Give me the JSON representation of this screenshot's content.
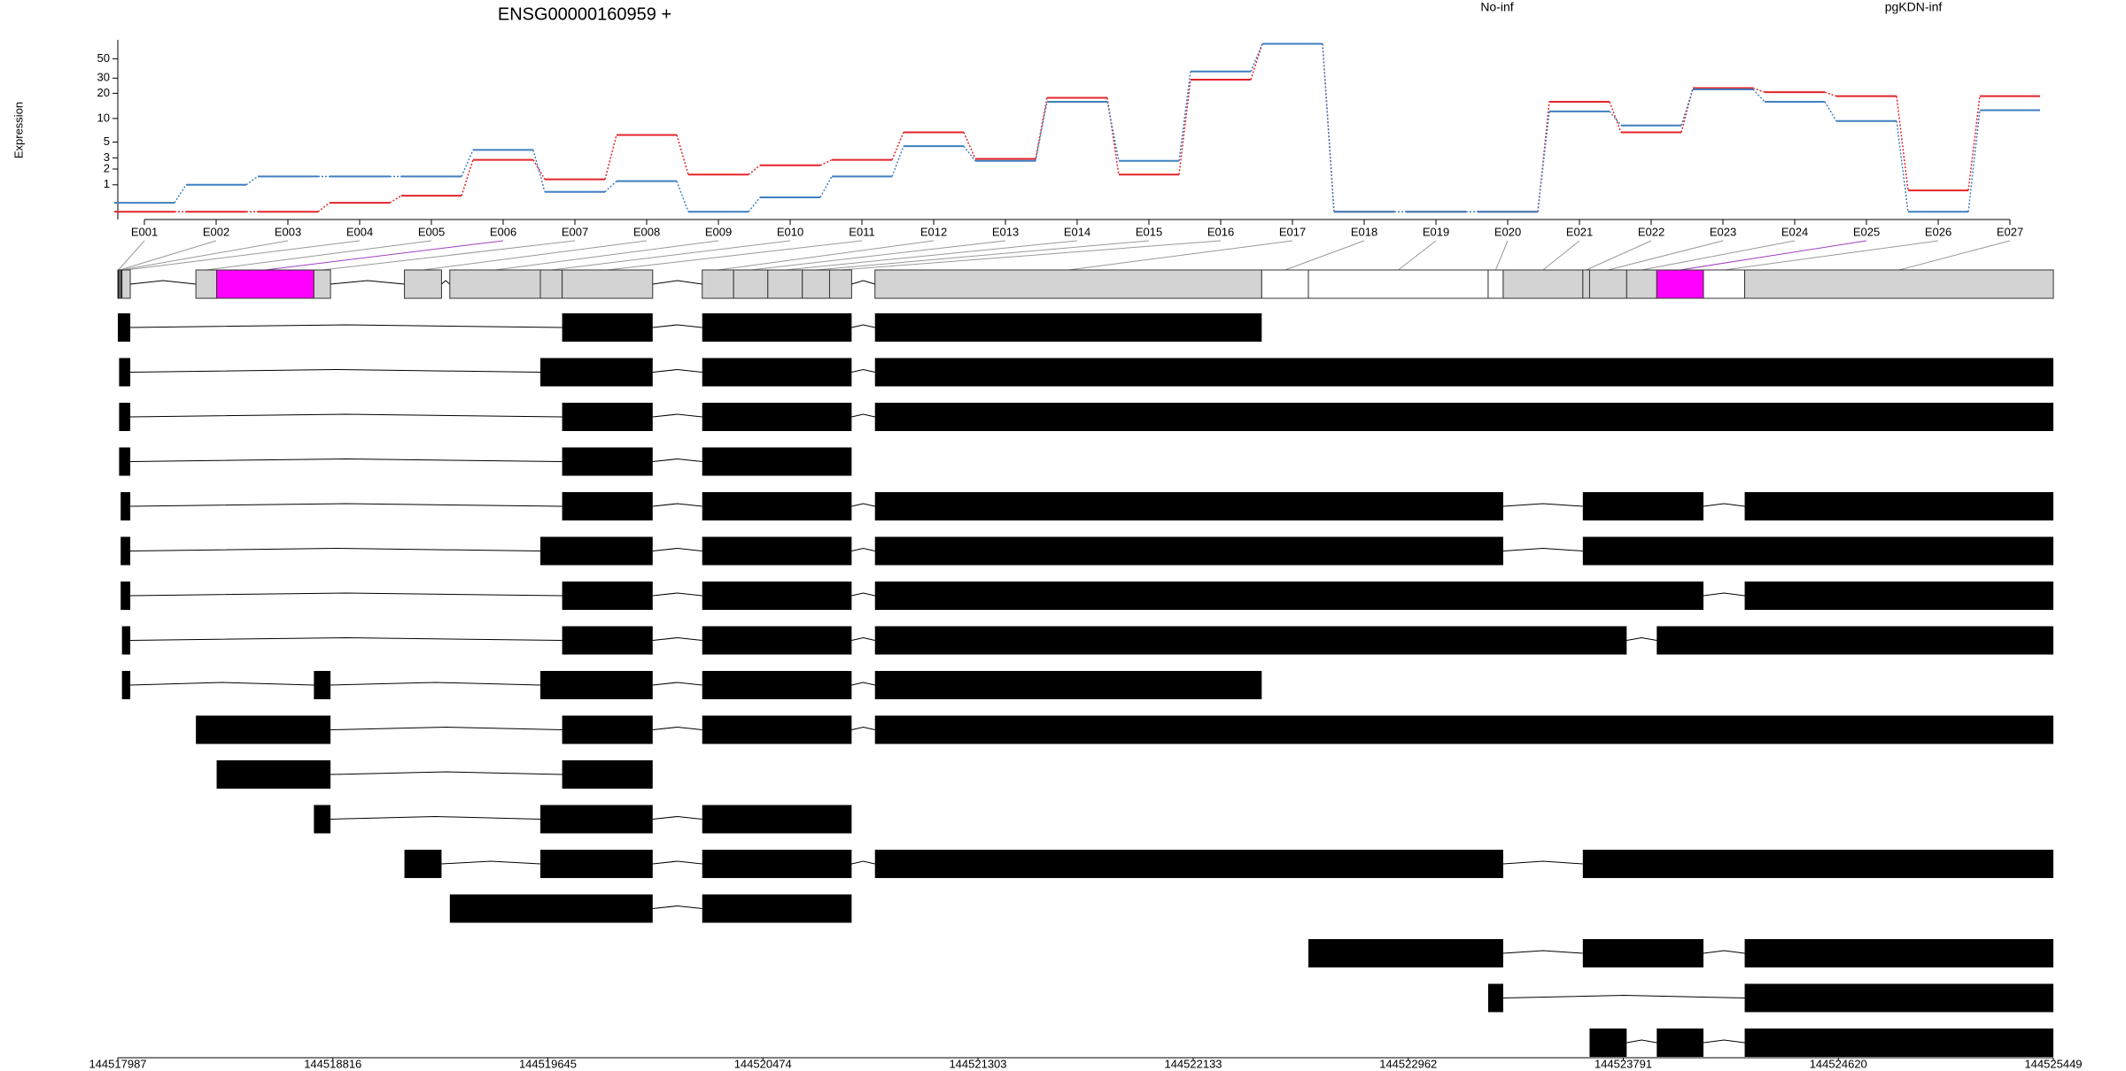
{
  "chart_data": [
    {
      "type": "line",
      "title": "ENSG00000160959 +",
      "ylabel": "Expression",
      "yscale": "log1p",
      "legend": "top-right",
      "categories": [
        "E001",
        "E002",
        "E003",
        "E004",
        "E005",
        "E006",
        "E007",
        "E008",
        "E009",
        "E010",
        "E011",
        "E012",
        "E013",
        "E014",
        "E015",
        "E016",
        "E017",
        "E018",
        "E019",
        "E020",
        "E021",
        "E022",
        "E023",
        "E024",
        "E025",
        "E026",
        "E027"
      ],
      "series": [
        {
          "name": "No-inf",
          "color": "#e3242b",
          "values": [
            0,
            0,
            0,
            0.26,
            0.51,
            2.8,
            1.3,
            6.2,
            1.6,
            2.3,
            2.8,
            6.7,
            2.9,
            17.7,
            1.6,
            28.8,
            74,
            0,
            0,
            0,
            15.9,
            6.7,
            23,
            20.6,
            18.5,
            0.73,
            18.5
          ]
        },
        {
          "name": "pgKDN-inf",
          "color": "#3f7fbf",
          "values": [
            0.26,
            1.0,
            1.48,
            1.48,
            1.48,
            3.9,
            0.67,
            1.2,
            0,
            0.45,
            1.48,
            4.4,
            2.7,
            15.9,
            2.7,
            35.8,
            74,
            0,
            0,
            0,
            12.2,
            8.2,
            22.2,
            15.9,
            9.3,
            0,
            12.6
          ]
        }
      ],
      "ylim": [
        -0.18,
        82
      ],
      "yticks": [
        1,
        2,
        3,
        5,
        10,
        20,
        30,
        50
      ]
    },
    {
      "type": "gene-model",
      "xlim": [
        144517987,
        144525449
      ],
      "xticks": [
        144517987,
        144518816,
        144519645,
        144520474,
        144521303,
        144522133,
        144522962,
        144523791,
        144524620,
        144525449
      ],
      "bins": [
        [
          144517987,
          144517992
        ],
        [
          144517992,
          144517998
        ],
        [
          144517998,
          144518003
        ],
        [
          144518003,
          144518035
        ],
        [
          144518288,
          144518368
        ],
        [
          144518368,
          144518743
        ],
        [
          144518743,
          144518807
        ],
        [
          144519092,
          144519235
        ],
        [
          144519267,
          144519616
        ],
        [
          144519616,
          144519700
        ],
        [
          144519700,
          144520049
        ],
        [
          144520240,
          144520361
        ],
        [
          144520361,
          144520493
        ],
        [
          144520493,
          144520626
        ],
        [
          144520626,
          144520731
        ],
        [
          144520731,
          144520816
        ],
        [
          144520906,
          144522397
        ],
        [
          144522397,
          144522577
        ],
        [
          144522577,
          144523270
        ],
        [
          144523270,
          144523328
        ],
        [
          144523328,
          144523635
        ],
        [
          144523635,
          144523661
        ],
        [
          144523661,
          144523804
        ],
        [
          144523804,
          144523920
        ],
        [
          144523920,
          144524100
        ],
        [
          144524100,
          144524259
        ],
        [
          144524259,
          144525449
        ]
      ],
      "bin_colors": [
        "#111111",
        "#d3d3d3",
        "#111111",
        "#d3d3d3",
        "#d3d3d3",
        "#ff00ff",
        "#d3d3d3",
        "#d3d3d3",
        "#d3d3d3",
        "#d3d3d3",
        "#d3d3d3",
        "#d3d3d3",
        "#d3d3d3",
        "#d3d3d3",
        "#d3d3d3",
        "#d3d3d3",
        "#d3d3d3",
        "#ffffff",
        "#ffffff",
        "#ffffff",
        "#d3d3d3",
        "#d3d3d3",
        "#d3d3d3",
        "#d3d3d3",
        "#ff00ff",
        "#ffffff",
        "#d3d3d3"
      ],
      "transcripts": [
        [
          [
            144517987,
            144518035
          ],
          [
            144519700,
            144520049
          ],
          [
            144520240,
            144520816
          ],
          [
            144520906,
            144522397
          ]
        ],
        [
          [
            144517992,
            144518035
          ],
          [
            144519616,
            144520049
          ],
          [
            144520240,
            144520816
          ],
          [
            144520906,
            144525449
          ]
        ],
        [
          [
            144517992,
            144518035
          ],
          [
            144519700,
            144520049
          ],
          [
            144520240,
            144520816
          ],
          [
            144520906,
            144525449
          ]
        ],
        [
          [
            144517992,
            144518035
          ],
          [
            144519700,
            144520049
          ],
          [
            144520240,
            144520816
          ]
        ],
        [
          [
            144517998,
            144518035
          ],
          [
            144519700,
            144520049
          ],
          [
            144520240,
            144520816
          ],
          [
            144520906,
            144523328
          ],
          [
            144523635,
            144524100
          ],
          [
            144524259,
            144525449
          ]
        ],
        [
          [
            144517998,
            144518035
          ],
          [
            144519616,
            144520049
          ],
          [
            144520240,
            144520816
          ],
          [
            144520906,
            144523328
          ],
          [
            144523635,
            144525449
          ]
        ],
        [
          [
            144517998,
            144518035
          ],
          [
            144519700,
            144520049
          ],
          [
            144520240,
            144520816
          ],
          [
            144520906,
            144524100
          ],
          [
            144524259,
            144525449
          ]
        ],
        [
          [
            144518003,
            144518035
          ],
          [
            144519700,
            144520049
          ],
          [
            144520240,
            144520816
          ],
          [
            144520906,
            144523804
          ],
          [
            144523920,
            144525449
          ]
        ],
        [
          [
            144518003,
            144518035
          ],
          [
            144518743,
            144518807
          ],
          [
            144519616,
            144520049
          ],
          [
            144520240,
            144520816
          ],
          [
            144520906,
            144522397
          ]
        ],
        [
          [
            144518288,
            144518807
          ],
          [
            144519700,
            144520049
          ],
          [
            144520240,
            144520816
          ],
          [
            144520906,
            144525449
          ]
        ],
        [
          [
            144518368,
            144518807
          ],
          [
            144519700,
            144520049
          ]
        ],
        [
          [
            144518743,
            144518807
          ],
          [
            144519616,
            144520049
          ],
          [
            144520240,
            144520816
          ]
        ],
        [
          [
            144519092,
            144519235
          ],
          [
            144519616,
            144520049
          ],
          [
            144520240,
            144520816
          ],
          [
            144520906,
            144523328
          ],
          [
            144523635,
            144525449
          ]
        ],
        [
          [
            144519267,
            144520049
          ],
          [
            144520240,
            144520816
          ]
        ],
        [
          [
            144522577,
            144523328
          ],
          [
            144523635,
            144524100
          ],
          [
            144524259,
            144525449
          ]
        ],
        [
          [
            144523270,
            144523328
          ],
          [
            144524259,
            144525449
          ]
        ],
        [
          [
            144523661,
            144523804
          ],
          [
            144523920,
            144524100
          ],
          [
            144524259,
            144525449
          ]
        ]
      ]
    }
  ]
}
